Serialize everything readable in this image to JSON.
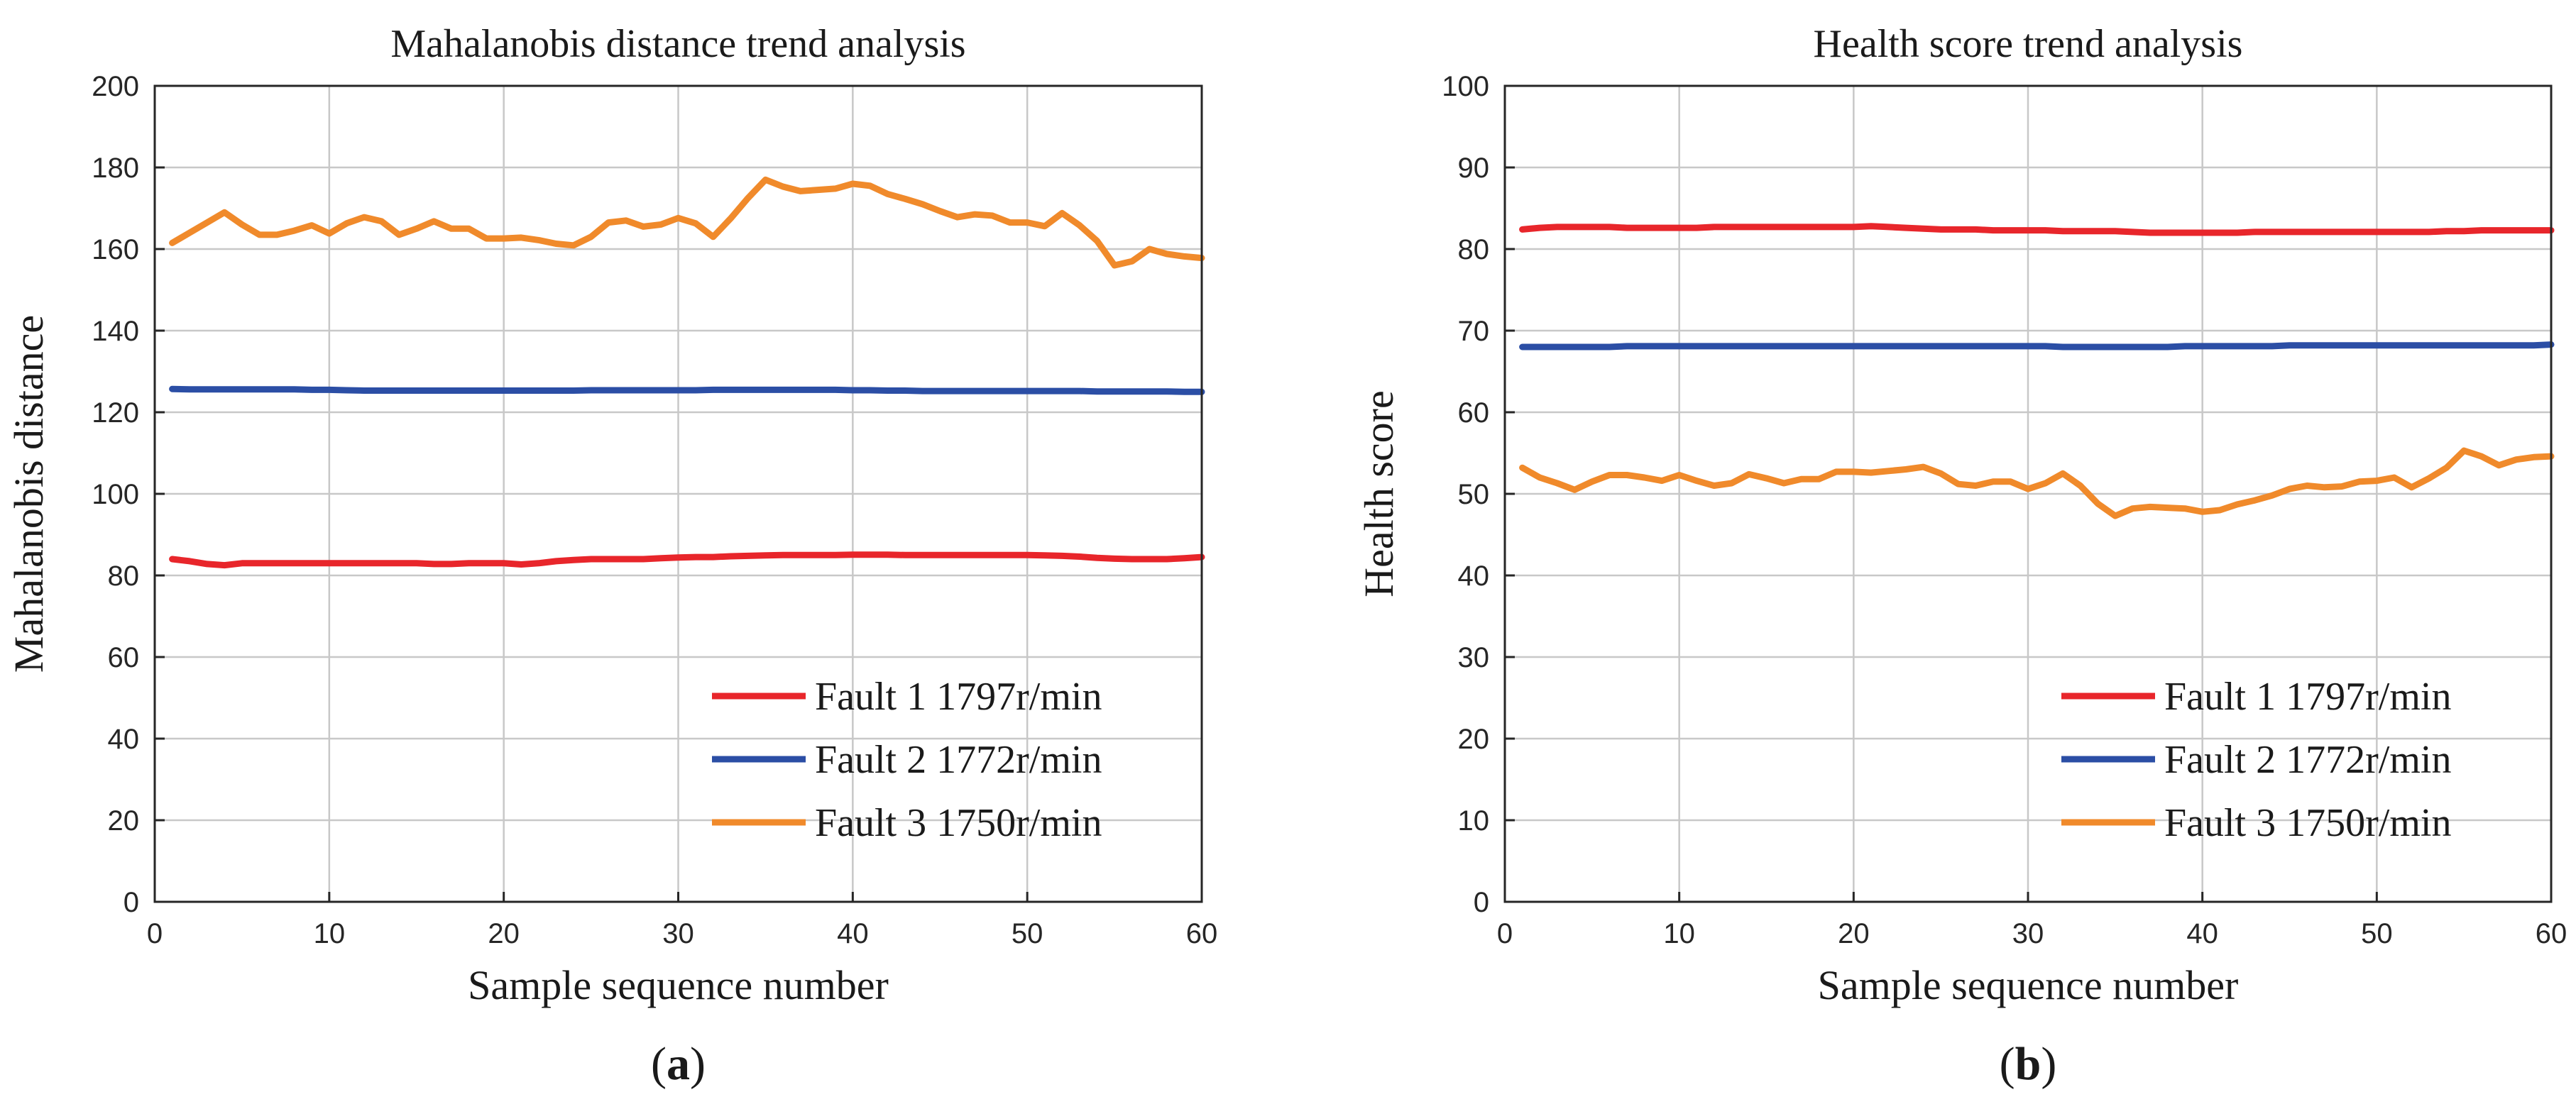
{
  "chart_data": [
    {
      "type": "line",
      "panel_label": "a",
      "title": "Mahalanobis distance trend analysis",
      "xlabel": "Sample sequence number",
      "ylabel": "Mahalanobis distance",
      "xlim": [
        0,
        60
      ],
      "ylim": [
        0,
        200
      ],
      "xticks": [
        0,
        10,
        20,
        30,
        40,
        50,
        60
      ],
      "yticks": [
        0,
        20,
        40,
        60,
        80,
        100,
        120,
        140,
        160,
        180,
        200
      ],
      "grid": true,
      "legend_position": "bottom-right",
      "x": [
        1,
        2,
        3,
        4,
        5,
        6,
        7,
        8,
        9,
        10,
        11,
        12,
        13,
        14,
        15,
        16,
        17,
        18,
        19,
        20,
        21,
        22,
        23,
        24,
        25,
        26,
        27,
        28,
        29,
        30,
        31,
        32,
        33,
        34,
        35,
        36,
        37,
        38,
        39,
        40,
        41,
        42,
        43,
        44,
        45,
        46,
        47,
        48,
        49,
        50,
        51,
        52,
        53,
        54,
        55,
        56,
        57,
        58,
        59,
        60
      ],
      "series": [
        {
          "name": "Fault 1 1797r/min",
          "color": "#e8262b",
          "values": [
            84,
            83.5,
            82.8,
            82.5,
            83,
            83,
            83,
            83,
            83,
            83,
            83,
            83,
            83,
            83,
            83,
            82.8,
            82.8,
            83,
            83,
            83,
            82.7,
            83,
            83.5,
            83.8,
            84,
            84,
            84,
            84,
            84.2,
            84.4,
            84.5,
            84.5,
            84.7,
            84.8,
            84.9,
            85,
            85,
            85,
            85,
            85.1,
            85.1,
            85.1,
            85,
            85,
            85,
            85,
            85,
            85,
            85,
            85,
            84.9,
            84.8,
            84.6,
            84.3,
            84.1,
            84,
            84,
            84,
            84.2,
            84.5
          ]
        },
        {
          "name": "Fault 2 1772r/min",
          "color": "#2b4ea5",
          "values": [
            125.7,
            125.6,
            125.6,
            125.6,
            125.6,
            125.6,
            125.6,
            125.6,
            125.5,
            125.5,
            125.4,
            125.3,
            125.3,
            125.3,
            125.3,
            125.3,
            125.3,
            125.3,
            125.3,
            125.3,
            125.3,
            125.3,
            125.3,
            125.3,
            125.4,
            125.4,
            125.4,
            125.4,
            125.4,
            125.4,
            125.4,
            125.5,
            125.5,
            125.5,
            125.5,
            125.5,
            125.5,
            125.5,
            125.5,
            125.4,
            125.4,
            125.3,
            125.3,
            125.2,
            125.2,
            125.2,
            125.2,
            125.2,
            125.2,
            125.2,
            125.2,
            125.2,
            125.2,
            125.1,
            125.1,
            125.1,
            125.1,
            125.1,
            125,
            125
          ]
        },
        {
          "name": "Fault 3 1750r/min",
          "color": "#f08a2b",
          "values": [
            161.5,
            164,
            166.5,
            169,
            166,
            163.5,
            163.5,
            164.5,
            165.8,
            163.8,
            166.3,
            167.8,
            166.8,
            163.5,
            165,
            166.8,
            165,
            165,
            162.6,
            162.6,
            162.8,
            162.2,
            161.3,
            160.9,
            163,
            166.5,
            167,
            165.5,
            166,
            167.6,
            166.3,
            163,
            167.5,
            172.5,
            177,
            175.3,
            174.2,
            174.5,
            174.8,
            176,
            175.5,
            173.5,
            172.3,
            171,
            169.3,
            167.8,
            168.5,
            168.2,
            166.5,
            166.5,
            165.6,
            168.8,
            165.8,
            162,
            156,
            157,
            160,
            158.8,
            158.2,
            157.8
          ]
        }
      ]
    },
    {
      "type": "line",
      "panel_label": "b",
      "title": "Health score trend analysis",
      "xlabel": "Sample sequence number",
      "ylabel": "Health score",
      "xlim": [
        0,
        60
      ],
      "ylim": [
        0,
        100
      ],
      "xticks": [
        0,
        10,
        20,
        30,
        40,
        50,
        60
      ],
      "yticks": [
        0,
        10,
        20,
        30,
        40,
        50,
        60,
        70,
        80,
        90,
        100
      ],
      "grid": true,
      "legend_position": "bottom-right",
      "x": [
        1,
        2,
        3,
        4,
        5,
        6,
        7,
        8,
        9,
        10,
        11,
        12,
        13,
        14,
        15,
        16,
        17,
        18,
        19,
        20,
        21,
        22,
        23,
        24,
        25,
        26,
        27,
        28,
        29,
        30,
        31,
        32,
        33,
        34,
        35,
        36,
        37,
        38,
        39,
        40,
        41,
        42,
        43,
        44,
        45,
        46,
        47,
        48,
        49,
        50,
        51,
        52,
        53,
        54,
        55,
        56,
        57,
        58,
        59,
        60
      ],
      "series": [
        {
          "name": "Fault 1 1797r/min",
          "color": "#e8262b",
          "values": [
            82.4,
            82.6,
            82.7,
            82.7,
            82.7,
            82.7,
            82.6,
            82.6,
            82.6,
            82.6,
            82.6,
            82.7,
            82.7,
            82.7,
            82.7,
            82.7,
            82.7,
            82.7,
            82.7,
            82.7,
            82.8,
            82.7,
            82.6,
            82.5,
            82.4,
            82.4,
            82.4,
            82.3,
            82.3,
            82.3,
            82.3,
            82.2,
            82.2,
            82.2,
            82.2,
            82.1,
            82,
            82,
            82,
            82,
            82,
            82,
            82.1,
            82.1,
            82.1,
            82.1,
            82.1,
            82.1,
            82.1,
            82.1,
            82.1,
            82.1,
            82.1,
            82.2,
            82.2,
            82.3,
            82.3,
            82.3,
            82.3,
            82.3
          ]
        },
        {
          "name": "Fault 2 1772r/min",
          "color": "#2b4ea5",
          "values": [
            68,
            68,
            68,
            68,
            68,
            68,
            68.1,
            68.1,
            68.1,
            68.1,
            68.1,
            68.1,
            68.1,
            68.1,
            68.1,
            68.1,
            68.1,
            68.1,
            68.1,
            68.1,
            68.1,
            68.1,
            68.1,
            68.1,
            68.1,
            68.1,
            68.1,
            68.1,
            68.1,
            68.1,
            68.1,
            68,
            68,
            68,
            68,
            68,
            68,
            68,
            68.1,
            68.1,
            68.1,
            68.1,
            68.1,
            68.1,
            68.2,
            68.2,
            68.2,
            68.2,
            68.2,
            68.2,
            68.2,
            68.2,
            68.2,
            68.2,
            68.2,
            68.2,
            68.2,
            68.2,
            68.2,
            68.3
          ]
        },
        {
          "name": "Fault 3 1750r/min",
          "color": "#f08a2b",
          "values": [
            53.2,
            52,
            51.3,
            50.5,
            51.5,
            52.3,
            52.3,
            52,
            51.6,
            52.3,
            51.6,
            51,
            51.3,
            52.4,
            51.9,
            51.3,
            51.8,
            51.8,
            52.7,
            52.7,
            52.6,
            52.8,
            53,
            53.3,
            52.5,
            51.2,
            51,
            51.5,
            51.5,
            50.6,
            51.3,
            52.5,
            51,
            48.8,
            47.3,
            48.2,
            48.4,
            48.3,
            48.2,
            47.8,
            48,
            48.7,
            49.2,
            49.8,
            50.6,
            51,
            50.8,
            50.9,
            51.5,
            51.6,
            52,
            50.8,
            51.9,
            53.2,
            55.3,
            54.6,
            53.5,
            54.2,
            54.5,
            54.6
          ]
        }
      ]
    }
  ]
}
